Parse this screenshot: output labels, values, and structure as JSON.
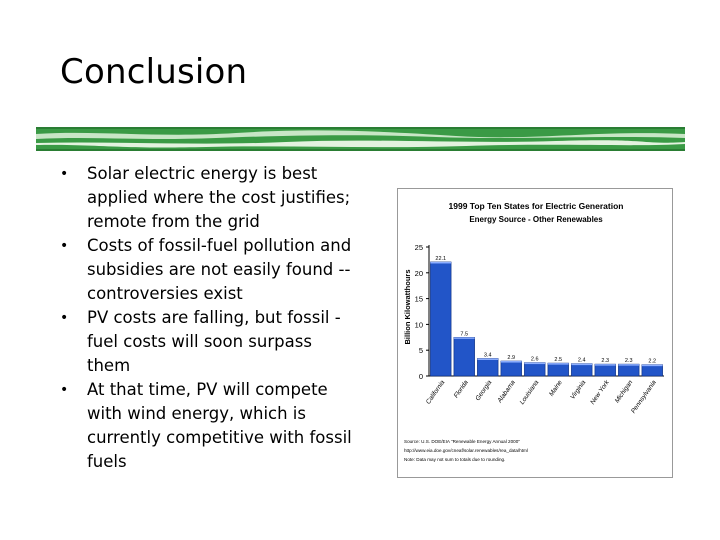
{
  "slide": {
    "title": "Conclusion",
    "bullets": [
      "Solar electric energy is best applied where the cost justifies; remote from the grid",
      "Costs of fossil-fuel pollution and subsidies are not easily found -- controversies exist",
      "PV costs are falling, but fossil -fuel costs will soon surpass them",
      "At that time, PV will compete with wind energy, which is currently competitive with fossil fuels"
    ],
    "bullet_char": "•",
    "accent_color": "#2e8b3a"
  },
  "chart_data": {
    "type": "bar",
    "title": "1999 Top Ten States for Electric Generation",
    "subtitle": "Energy Source - Other Renewables",
    "ylabel": "Billion Kilowatthours",
    "xlabel": "",
    "ylim": [
      0,
      25
    ],
    "yticks": [
      0,
      5,
      10,
      15,
      20,
      25
    ],
    "categories": [
      "California",
      "Florida",
      "Georgia",
      "Alabama",
      "Louisiana",
      "Maine",
      "Virginia",
      "New York",
      "Michigan",
      "Pennsylvania"
    ],
    "values": [
      22.1,
      7.5,
      3.4,
      2.9,
      2.6,
      2.5,
      2.4,
      2.3,
      2.3,
      2.2
    ],
    "data_labels": [
      "22.1",
      "7.5",
      "3.4",
      "2.9",
      "2.6",
      "2.5",
      "2.4",
      "2.3",
      "2.3",
      "2.2"
    ],
    "bar_color": "#2255c8",
    "grid": false,
    "source_note": [
      "Source: U.S. DOE/EIA \"Renewable Energy Annual 2000\"",
      "http://www.eia.doe.gov/cneaf/solar.renewables/rea_data/html",
      "Note: Data may not sum to totals due to rounding."
    ]
  }
}
